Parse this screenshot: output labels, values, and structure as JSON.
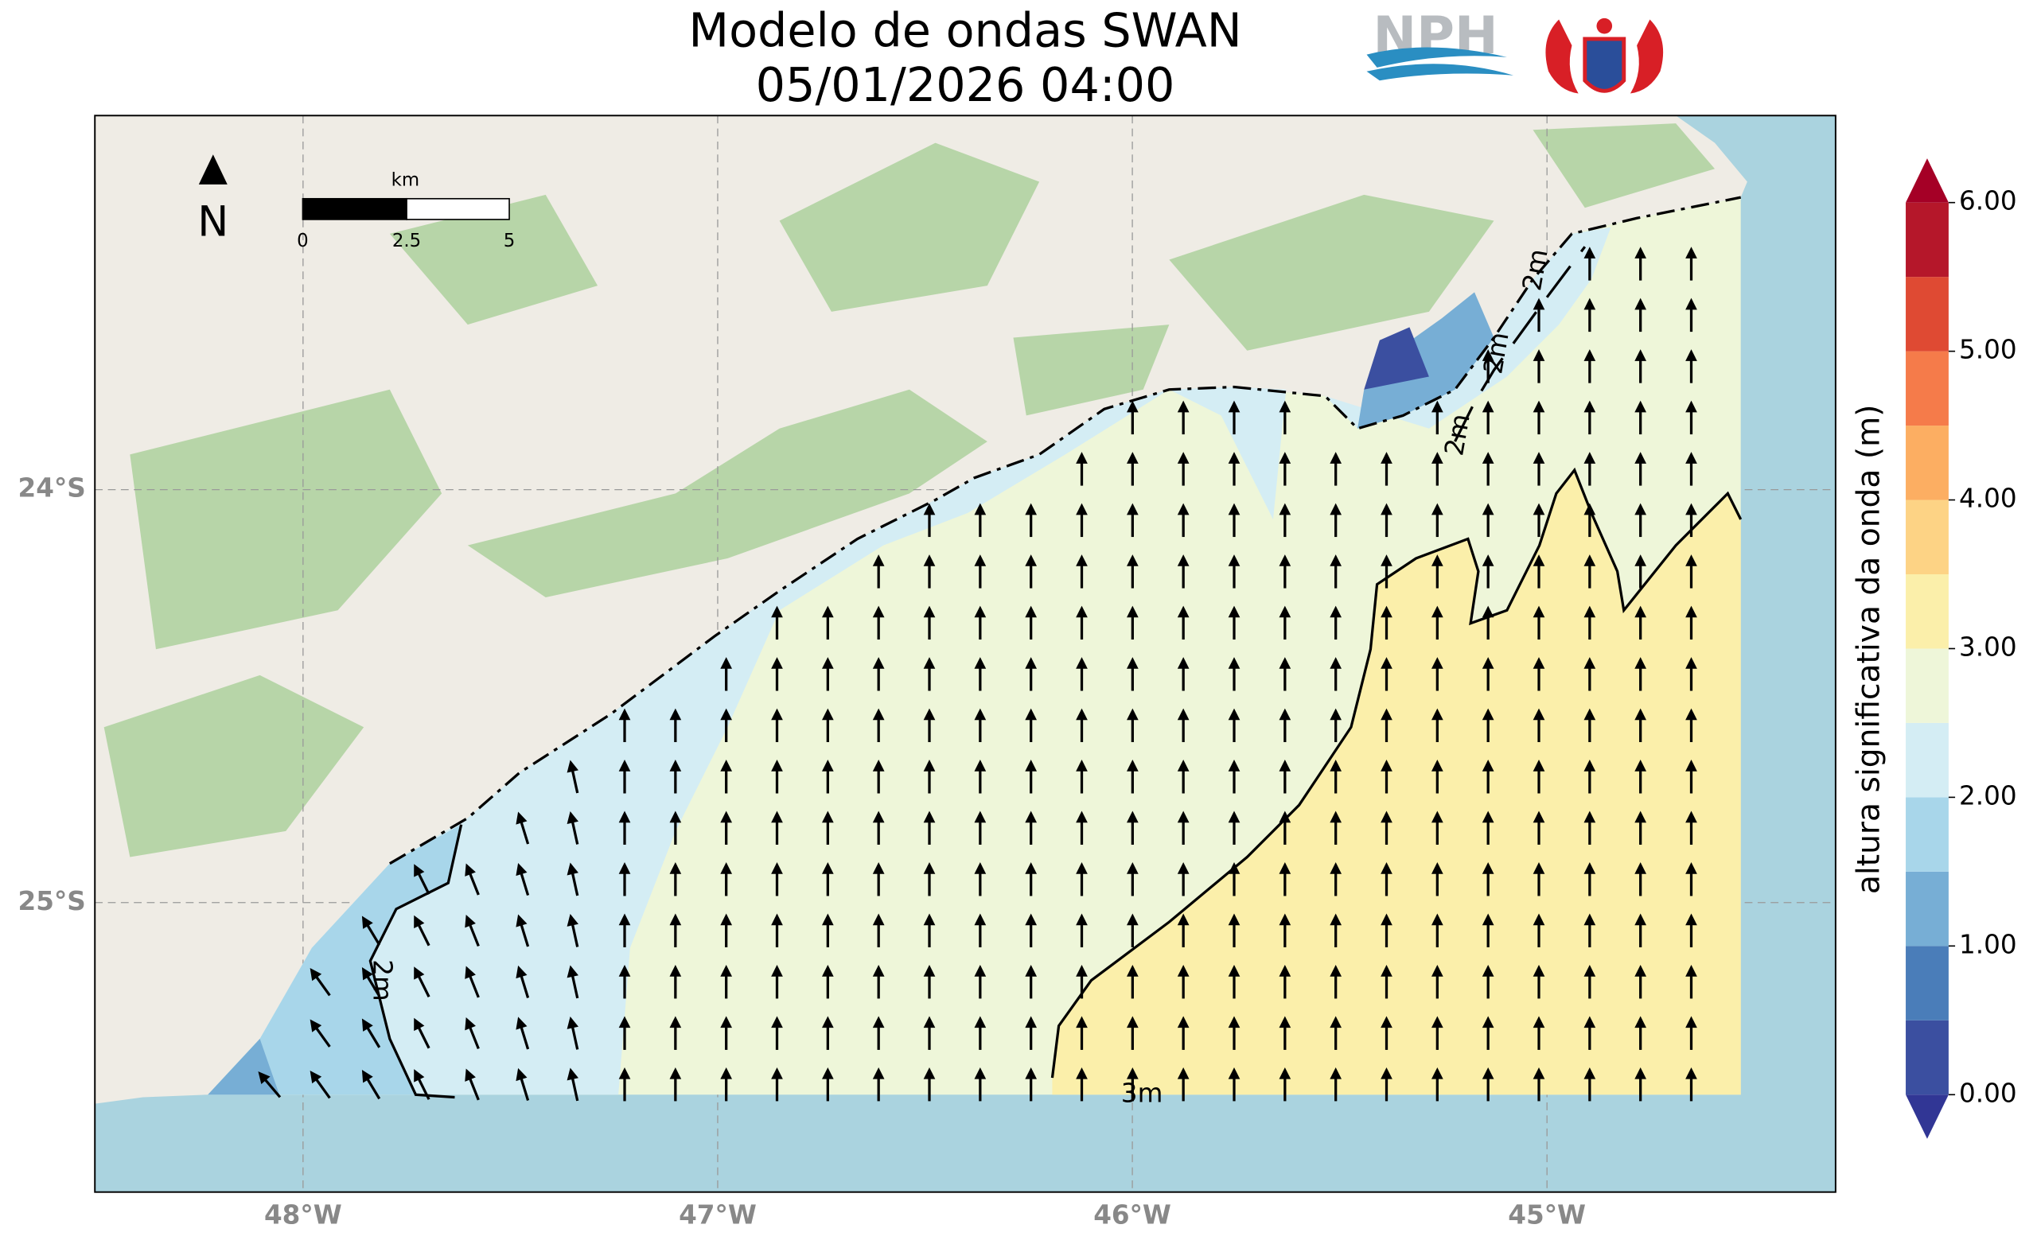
{
  "header": {
    "title": "Modelo de ondas SWAN",
    "subtitle": "05/01/2026 04:00",
    "logo": "NPH"
  },
  "map": {
    "north": "N",
    "scale_bar": {
      "unit": "km",
      "ticks": [
        0,
        2.5,
        5
      ]
    },
    "xlim": [
      -48.502,
      -44.304
    ],
    "ylim": [
      -25.701,
      -23.094
    ],
    "xticks": [
      {
        "value": -48,
        "label": "48°W"
      },
      {
        "value": -47,
        "label": "47°W"
      },
      {
        "value": -46,
        "label": "46°W"
      },
      {
        "value": -45,
        "label": "45°W"
      }
    ],
    "yticks": [
      {
        "value": -24,
        "label": "24°S"
      },
      {
        "value": -25,
        "label": "25°S"
      }
    ],
    "grid": true,
    "contour_labels": [
      "2m",
      "2m",
      "2m",
      "2m",
      "3m"
    ],
    "colorbar": {
      "label": "altura significativa da onda (m)",
      "levels": [
        0,
        0.5,
        1,
        1.5,
        2,
        2.5,
        3,
        3.5,
        4,
        4.5,
        5,
        5.5,
        6
      ],
      "colors": [
        "#3b4fa0",
        "#4a7db9",
        "#77aed5",
        "#a8d6ea",
        "#d4edf4",
        "#eef6d9",
        "#fbefaa",
        "#fdd385",
        "#fcae62",
        "#f57b4a",
        "#df4a33",
        "#b5172a"
      ],
      "under": "#313695",
      "over": "#a50026",
      "ticks": [
        {
          "value": 0,
          "label": "0.00"
        },
        {
          "value": 1,
          "label": "1.00"
        },
        {
          "value": 2,
          "label": "2.00"
        },
        {
          "value": 3,
          "label": "3.00"
        },
        {
          "value": 4,
          "label": "4.00"
        },
        {
          "value": 5,
          "label": "5.00"
        },
        {
          "value": 6,
          "label": "6.00"
        }
      ]
    }
  }
}
